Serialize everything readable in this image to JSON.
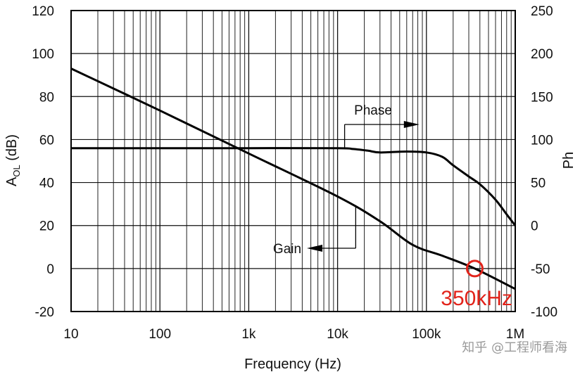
{
  "chart_data": {
    "type": "line",
    "xscale": "log",
    "xlim": [
      10,
      1000000
    ],
    "ylim_left": [
      -20,
      120
    ],
    "ylim_right": [
      -100,
      250
    ],
    "grid": true,
    "x_ticks": [
      {
        "value": 10,
        "label": "10"
      },
      {
        "value": 100,
        "label": "100"
      },
      {
        "value": 1000,
        "label": "1k"
      },
      {
        "value": 10000,
        "label": "10k"
      },
      {
        "value": 100000,
        "label": "100k"
      },
      {
        "value": 1000000,
        "label": "1M"
      }
    ],
    "y_left_ticks": [
      "-20",
      "0",
      "20",
      "40",
      "60",
      "80",
      "100",
      "120"
    ],
    "y_right_ticks": [
      "-100",
      "-50",
      "0",
      "50",
      "100",
      "150",
      "200",
      "250"
    ],
    "xlabel": "Frequency (Hz)",
    "ylabel_left": {
      "main": "A",
      "sub": "OL",
      "rest": " (dB)"
    },
    "ylabel_right": "Ph",
    "series": [
      {
        "name": "Gain",
        "axis": "left",
        "x": [
          10,
          100,
          1000,
          10000,
          30000,
          70000,
          150000,
          350000,
          1000000
        ],
        "y": [
          93,
          73.5,
          53.5,
          33.5,
          22,
          11,
          6,
          0,
          -9.5
        ]
      },
      {
        "name": "Phase",
        "axis": "right",
        "x": [
          10,
          100,
          1000,
          10000,
          15000,
          22000,
          30000,
          60000,
          100000,
          150000,
          200000,
          300000,
          400000,
          600000,
          800000,
          1000000
        ],
        "y": [
          90,
          90,
          90,
          90,
          89,
          87,
          85,
          86,
          85,
          80,
          70,
          57,
          48,
          30,
          13,
          0
        ]
      }
    ],
    "annotations": [
      {
        "text": "Phase",
        "series": "Phase"
      },
      {
        "text": "Gain",
        "series": "Gain"
      },
      {
        "text": "350kHz",
        "x": 350000,
        "y": 0,
        "color": "#e2231a"
      }
    ]
  },
  "watermark": "知乎 @工程师看海"
}
